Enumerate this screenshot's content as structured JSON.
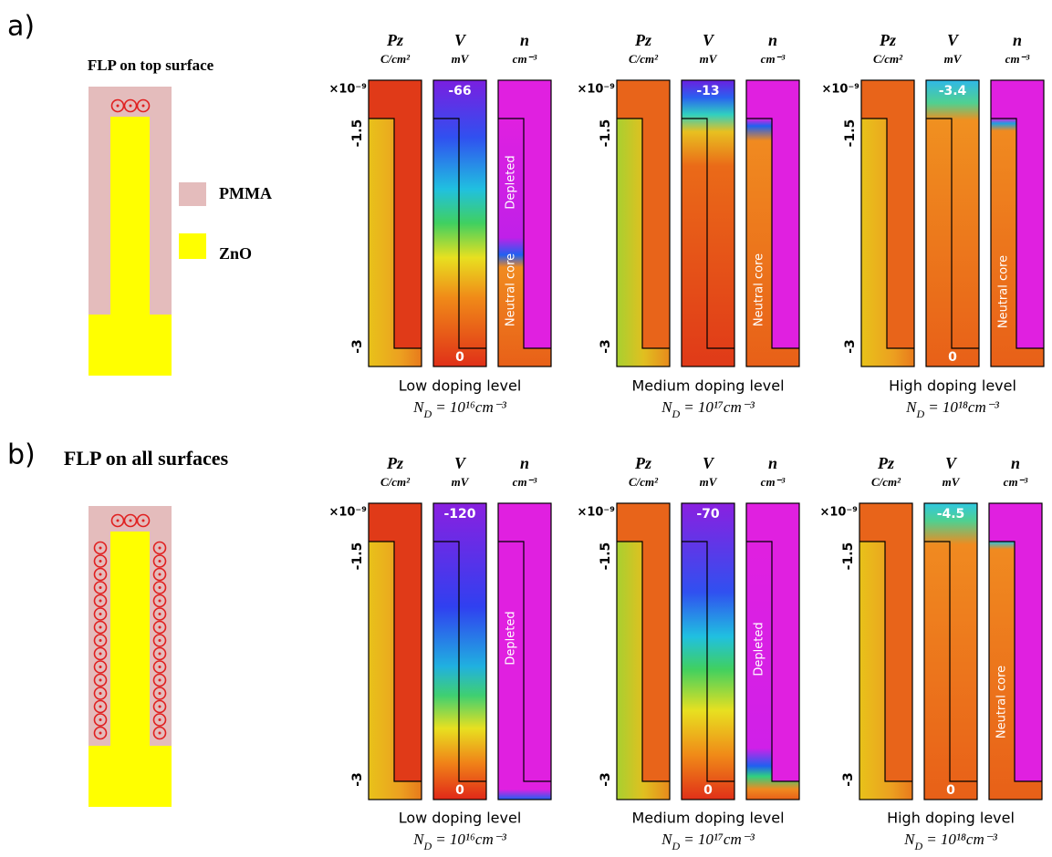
{
  "columns": [
    {
      "symbol": "Pz",
      "unit": "C/cm²"
    },
    {
      "symbol": "V",
      "unit": "mV"
    },
    {
      "symbol": "n",
      "unit": "cm⁻³"
    }
  ],
  "axis": {
    "exponent": "×10⁻⁹",
    "ticks": [
      "-1.5",
      "-3"
    ]
  },
  "panels": [
    {
      "label": "a)",
      "schematic": {
        "title": "FLP on top surface",
        "legend": [
          "PMMA",
          "ZnO"
        ]
      },
      "groups": [
        {
          "v_top": -66,
          "v_bottom": 0,
          "annotations": [
            "Depleted",
            "Neutral core"
          ],
          "caption": "Low doping level",
          "formula": {
            "lhs": "N",
            "sub": "D",
            "rhs": "= 10¹⁶cm⁻³"
          }
        },
        {
          "v_top": -13,
          "v_bottom": null,
          "annotations": [
            "Neutral core"
          ],
          "caption": "Medium doping level",
          "formula": {
            "lhs": "N",
            "sub": "D",
            "rhs": "= 10¹⁷cm⁻³"
          }
        },
        {
          "v_top": -3.4,
          "v_bottom": 0,
          "annotations": [
            "Neutral core"
          ],
          "caption": "High doping level",
          "formula": {
            "lhs": "N",
            "sub": "D",
            "rhs": "= 10¹⁸cm⁻³"
          }
        }
      ]
    },
    {
      "label": "b)",
      "schematic": {
        "title": "FLP on all surfaces"
      },
      "groups": [
        {
          "v_top": -120,
          "v_bottom": 0,
          "annotations": [
            "Depleted"
          ],
          "caption": "Low doping level",
          "formula": {
            "lhs": "N",
            "sub": "D",
            "rhs": "= 10¹⁶cm⁻³"
          }
        },
        {
          "v_top": -70,
          "v_bottom": 0,
          "annotations": [
            "Depleted"
          ],
          "caption": "Medium doping level",
          "formula": {
            "lhs": "N",
            "sub": "D",
            "rhs": "= 10¹⁷cm⁻³"
          }
        },
        {
          "v_top": -4.5,
          "v_bottom": 0,
          "annotations": [
            "Neutral core"
          ],
          "caption": "High doping level",
          "formula": {
            "lhs": "N",
            "sub": "D",
            "rhs": "= 10¹⁸cm⁻³"
          }
        }
      ]
    }
  ]
}
